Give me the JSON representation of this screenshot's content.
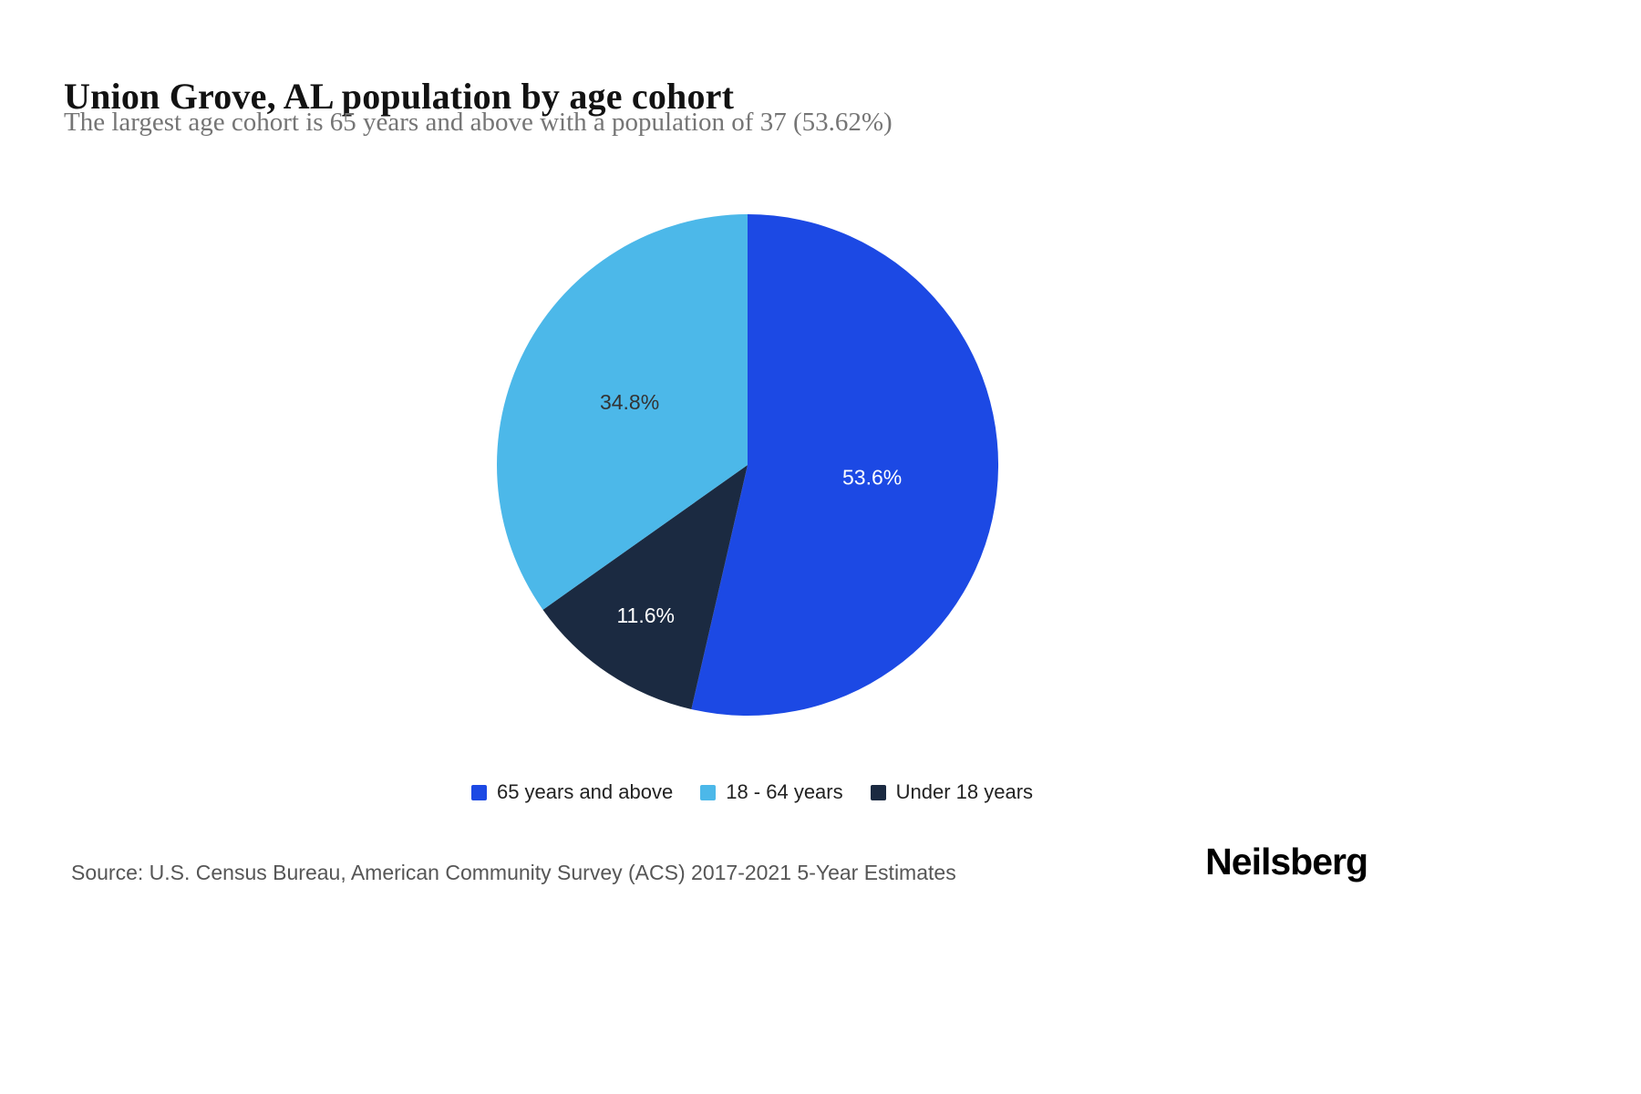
{
  "header": {
    "title": "Union Grove, AL population by age cohort",
    "subtitle": "The largest age cohort is 65 years and above with a population of 37 (53.62%)"
  },
  "chart_data": {
    "type": "pie",
    "title": "Union Grove, AL population by age cohort",
    "start_angle_deg": 0,
    "direction": "clockwise",
    "legend_position": "bottom",
    "slices": [
      {
        "label": "65 years and above",
        "value": 53.6,
        "display": "53.6%",
        "color": "#1c49e4",
        "text_color": "#ffffff",
        "label_radius_frac": 0.5
      },
      {
        "label": "Under 18 years",
        "value": 11.6,
        "display": "11.6%",
        "color": "#1b2a41",
        "text_color": "#ffffff",
        "label_radius_frac": 0.73
      },
      {
        "label": "18 - 64 years",
        "value": 34.8,
        "display": "34.8%",
        "color": "#4cb8e9",
        "text_color": "#333333",
        "label_radius_frac": 0.53
      }
    ],
    "legend": [
      {
        "label": "65 years and above",
        "color": "#1c49e4"
      },
      {
        "label": "18 - 64 years",
        "color": "#4cb8e9"
      },
      {
        "label": "Under 18 years",
        "color": "#1b2a41"
      }
    ]
  },
  "footer": {
    "source": "Source: U.S. Census Bureau, American Community Survey (ACS) 2017-2021 5-Year Estimates",
    "brand": "Neilsberg"
  }
}
